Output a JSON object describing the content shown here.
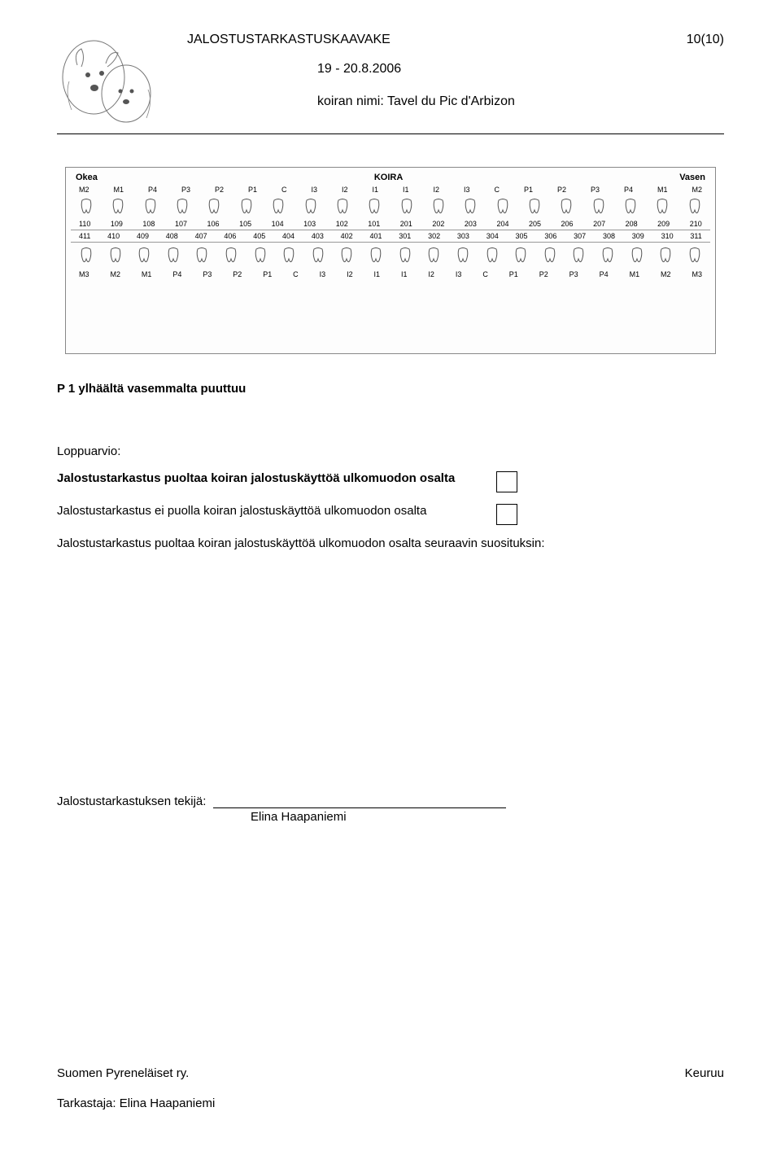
{
  "header": {
    "title": "JALOSTUSTARKASTUSKAAVAKE",
    "page_num": "10(10)",
    "date": "19 - 20.8.2006",
    "name_label": "koiran nimi:",
    "name_value": "Tavel du Pic d'Arbizon"
  },
  "dental_chart": {
    "left_label": "Okea",
    "center_label": "KOIRA",
    "right_label": "Vasen",
    "upper_tooth_labels": [
      "M2",
      "M1",
      "P4",
      "P3",
      "P2",
      "P1",
      "C",
      "I3",
      "I2",
      "I1",
      "I1",
      "I2",
      "I3",
      "C",
      "P1",
      "P2",
      "P3",
      "P4",
      "M1",
      "M2"
    ],
    "upper_numbers": [
      "110",
      "109",
      "108",
      "107",
      "106",
      "105",
      "104",
      "103",
      "102",
      "101",
      "201",
      "202",
      "203",
      "204",
      "205",
      "206",
      "207",
      "208",
      "209",
      "210"
    ],
    "lower_numbers": [
      "411",
      "410",
      "409",
      "408",
      "407",
      "406",
      "405",
      "404",
      "403",
      "402",
      "401",
      "301",
      "302",
      "303",
      "304",
      "305",
      "306",
      "307",
      "308",
      "309",
      "310",
      "311"
    ],
    "lower_tooth_labels": [
      "M3",
      "M2",
      "M1",
      "P4",
      "P3",
      "P2",
      "P1",
      "C",
      "I3",
      "I2",
      "I1",
      "I1",
      "I2",
      "I3",
      "C",
      "P1",
      "P2",
      "P3",
      "P4",
      "M1",
      "M2",
      "M3"
    ]
  },
  "body": {
    "missing_tooth": "P 1 ylhäältä vasemmalta puuttuu",
    "loppuarvio_label": "Loppuarvio:",
    "option1": "Jalostustarkastus puoltaa koiran jalostuskäyttöä  ulkomuodon osalta",
    "option2": "Jalostustarkastus ei puolla koiran jalostuskäyttöä ulkomuodon osalta",
    "option3": "Jalostustarkastus puoltaa koiran jalostuskäyttöä ulkomuodon osalta seuraavin suosituksin:",
    "tekija_label": "Jalostustarkastuksen tekijä:",
    "tekija_name": "Elina Haapaniemi"
  },
  "footer": {
    "org": "Suomen Pyreneläiset ry.",
    "place": "Keuruu",
    "tarkastaja_label": "Tarkastaja:",
    "tarkastaja_name": "Elina Haapaniemi"
  },
  "colors": {
    "text": "#000000",
    "background": "#ffffff",
    "chart_border": "#888888"
  }
}
